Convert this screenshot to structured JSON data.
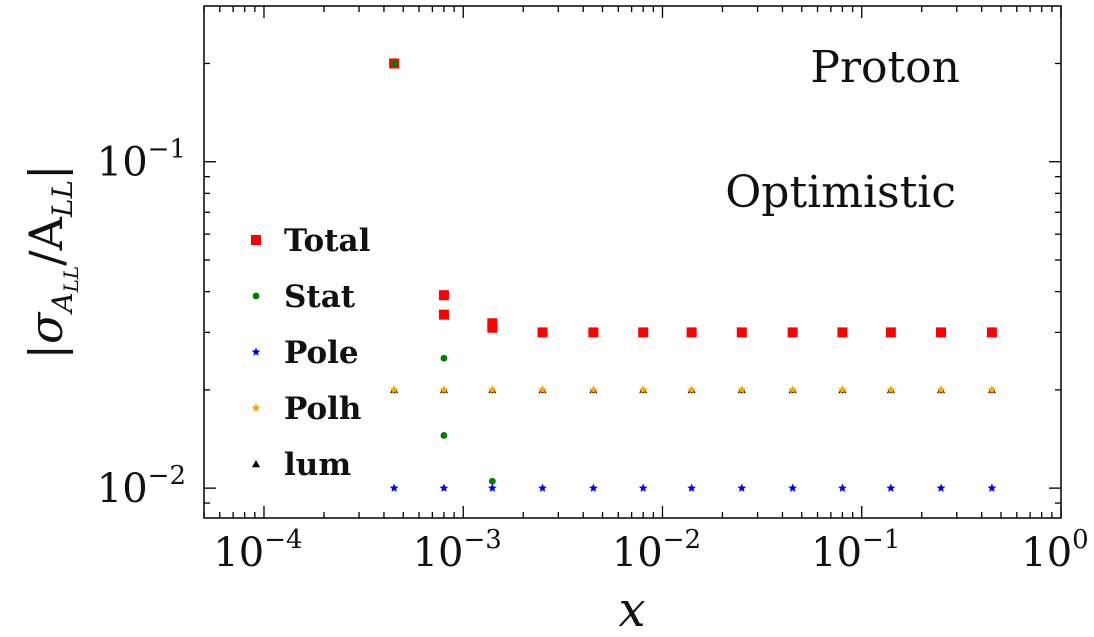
{
  "chart_data": {
    "type": "scatter",
    "xscale": "log",
    "yscale": "log",
    "xlim": [
      5e-05,
      1
    ],
    "ylim": [
      0.0081,
      0.3
    ],
    "xlabel": "x",
    "ylabel": "|σ_{A_LL}/A_LL|",
    "x_ticks": [
      {
        "value": 0.0001,
        "label": "10",
        "exp": "−4"
      },
      {
        "value": 0.001,
        "label": "10",
        "exp": "−3"
      },
      {
        "value": 0.01,
        "label": "10",
        "exp": "−2"
      },
      {
        "value": 0.1,
        "label": "10",
        "exp": "−1"
      },
      {
        "value": 1,
        "label": "10",
        "exp": "0"
      }
    ],
    "y_ticks": [
      {
        "value": 0.01,
        "label": "10",
        "exp": "−2"
      },
      {
        "value": 0.1,
        "label": "10",
        "exp": "−1"
      }
    ],
    "annotations": [
      "Proton",
      "Optimistic"
    ],
    "legend_position": "center-left",
    "grid": false,
    "series": [
      {
        "name": "Total",
        "marker": "square",
        "color": "#ff0000",
        "x": [
          0.00045,
          0.0008,
          0.0008,
          0.0014,
          0.0014,
          0.0025,
          0.0045,
          0.008,
          0.014,
          0.025,
          0.045,
          0.08,
          0.14,
          0.25,
          0.45
        ],
        "y": [
          0.2,
          0.039,
          0.034,
          0.032,
          0.031,
          0.03,
          0.03,
          0.03,
          0.03,
          0.03,
          0.03,
          0.03,
          0.03,
          0.03,
          0.03
        ]
      },
      {
        "name": "Stat",
        "marker": "circle",
        "color": "#008000",
        "x": [
          0.00045,
          0.0008,
          0.0008,
          0.0014
        ],
        "y": [
          0.2,
          0.025,
          0.0145,
          0.0105
        ]
      },
      {
        "name": "Pole",
        "marker": "star",
        "color": "#0000ff",
        "x": [
          0.00045,
          0.0008,
          0.0014,
          0.0025,
          0.0045,
          0.008,
          0.014,
          0.025,
          0.045,
          0.08,
          0.14,
          0.25,
          0.45
        ],
        "y": [
          0.01,
          0.01,
          0.01,
          0.01,
          0.01,
          0.01,
          0.01,
          0.01,
          0.01,
          0.01,
          0.01,
          0.01,
          0.01
        ]
      },
      {
        "name": "lum",
        "marker": "triangle",
        "color": "#000000",
        "x": [
          0.00045,
          0.0008,
          0.0014,
          0.0025,
          0.0045,
          0.008,
          0.014,
          0.025,
          0.045,
          0.08,
          0.14,
          0.25,
          0.45
        ],
        "y": [
          0.02,
          0.02,
          0.02,
          0.02,
          0.02,
          0.02,
          0.02,
          0.02,
          0.02,
          0.02,
          0.02,
          0.02,
          0.02
        ]
      },
      {
        "name": "Polh",
        "marker": "star",
        "color": "#ffa500",
        "x": [
          0.00045,
          0.0008,
          0.0014,
          0.0025,
          0.0045,
          0.008,
          0.014,
          0.025,
          0.045,
          0.08,
          0.14,
          0.25,
          0.45
        ],
        "y": [
          0.02,
          0.02,
          0.02,
          0.02,
          0.02,
          0.02,
          0.02,
          0.02,
          0.02,
          0.02,
          0.02,
          0.02,
          0.02
        ]
      }
    ],
    "legend_order": [
      "Total",
      "Stat",
      "Pole",
      "Polh",
      "lum"
    ]
  }
}
